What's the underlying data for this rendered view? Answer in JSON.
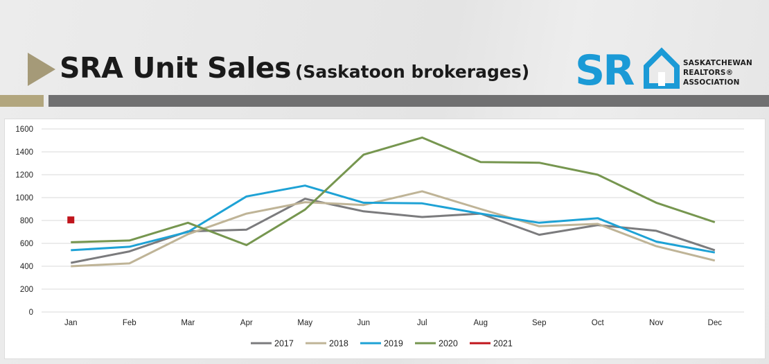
{
  "header": {
    "title": "SRA Unit Sales",
    "subtitle": "(Saskatoon brokerages)"
  },
  "logo": {
    "mark": "SR",
    "name_line1": "SASKATCHEWAN",
    "name_line2": "REALTORS®",
    "name_line3": "ASSOCIATION",
    "colors": {
      "mark": "#1b9ad6",
      "house": "#1b9ad6"
    }
  },
  "colors": {
    "accent_tan": "#b2a67e",
    "accent_gray": "#707071",
    "arrow": "#a59a78"
  },
  "chart_data": {
    "type": "line",
    "categories": [
      "Jan",
      "Feb",
      "Mar",
      "Apr",
      "May",
      "Jun",
      "Jul",
      "Aug",
      "Sep",
      "Oct",
      "Nov",
      "Dec"
    ],
    "ylim": [
      0,
      1600
    ],
    "yticks": [
      0,
      200,
      400,
      600,
      800,
      1000,
      1200,
      1400,
      1600
    ],
    "grid": "horizontal",
    "legend": "bottom",
    "series": [
      {
        "name": "2017",
        "color": "#7b7b7d",
        "values": [
          430,
          530,
          705,
          720,
          990,
          880,
          830,
          860,
          675,
          760,
          710,
          540
        ]
      },
      {
        "name": "2018",
        "color": "#bfb497",
        "values": [
          400,
          425,
          680,
          860,
          960,
          935,
          1055,
          900,
          750,
          770,
          575,
          450
        ]
      },
      {
        "name": "2019",
        "color": "#1ea2d5",
        "values": [
          540,
          570,
          700,
          1010,
          1105,
          955,
          950,
          860,
          780,
          820,
          615,
          520
        ]
      },
      {
        "name": "2020",
        "color": "#76964f",
        "values": [
          610,
          625,
          780,
          585,
          895,
          1375,
          1525,
          1310,
          1305,
          1200,
          955,
          785
        ]
      },
      {
        "name": "2021",
        "color": "#c0151c",
        "values": [
          805,
          null,
          null,
          null,
          null,
          null,
          null,
          null,
          null,
          null,
          null,
          null
        ]
      }
    ]
  }
}
